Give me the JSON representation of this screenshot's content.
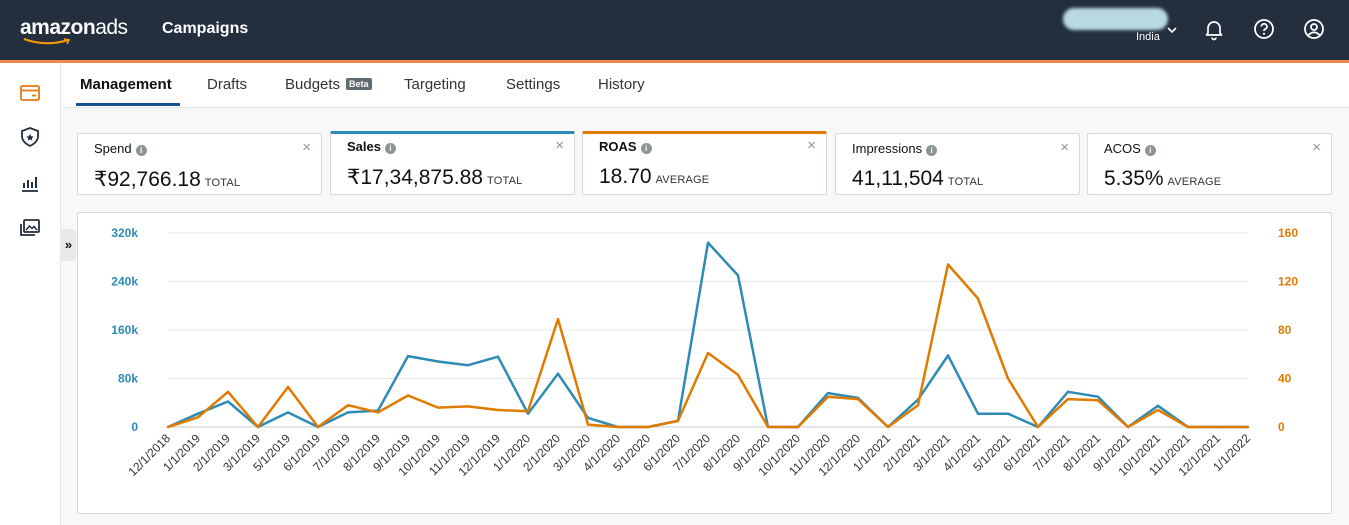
{
  "header": {
    "logo_main": "amazon",
    "logo_sub": "ads",
    "app_title": "Campaigns",
    "country": "India"
  },
  "tabs": [
    {
      "label": "Management",
      "active": true
    },
    {
      "label": "Drafts"
    },
    {
      "label": "Budgets",
      "badge": "Beta"
    },
    {
      "label": "Targeting"
    },
    {
      "label": "Settings"
    },
    {
      "label": "History"
    }
  ],
  "metrics": [
    {
      "label": "Spend",
      "value": "₹92,766.18",
      "unit": "TOTAL"
    },
    {
      "label": "Sales",
      "value": "₹17,34,875.88",
      "unit": "TOTAL",
      "selected_color": "#2e8bb5"
    },
    {
      "label": "ROAS",
      "value": "18.70",
      "unit": "AVERAGE",
      "selected_color": "#e07b00"
    },
    {
      "label": "Impressions",
      "value": "41,11,504",
      "unit": "TOTAL"
    },
    {
      "label": "ACOS",
      "value": "5.35%",
      "unit": "AVERAGE"
    }
  ],
  "icons": {
    "close": "×",
    "info": "i",
    "collapse": "»"
  },
  "chart_data": {
    "type": "line",
    "x": [
      "12/1/2018",
      "1/1/2019",
      "2/1/2019",
      "3/1/2019",
      "5/1/2019",
      "6/1/2019",
      "7/1/2019",
      "8/1/2019",
      "9/1/2019",
      "10/1/2019",
      "11/1/2019",
      "12/1/2019",
      "1/1/2020",
      "2/1/2020",
      "3/1/2020",
      "4/1/2020",
      "5/1/2020",
      "6/1/2020",
      "7/1/2020",
      "8/1/2020",
      "9/1/2020",
      "10/1/2020",
      "11/1/2020",
      "12/1/2020",
      "1/1/2021",
      "2/1/2021",
      "3/1/2021",
      "4/1/2021",
      "5/1/2021",
      "6/1/2021",
      "7/1/2021",
      "8/1/2021",
      "9/1/2021",
      "10/1/2021",
      "11/1/2021",
      "12/1/2021",
      "1/1/2022"
    ],
    "series": [
      {
        "name": "Sales",
        "axis": "left",
        "color": "#2e8bb5",
        "values": [
          0,
          22000,
          42000,
          0,
          24000,
          0,
          24000,
          27000,
          117000,
          108000,
          102000,
          116000,
          22000,
          88000,
          15000,
          0,
          0,
          10000,
          304000,
          250000,
          0,
          0,
          56000,
          48000,
          0,
          45000,
          118000,
          22000,
          22000,
          0,
          58000,
          50000,
          0,
          35000,
          0,
          0,
          0
        ]
      },
      {
        "name": "ROAS",
        "axis": "right",
        "color": "#e07b00",
        "values": [
          0,
          8,
          29,
          0,
          33,
          0,
          18,
          12,
          26,
          16,
          17,
          14,
          13,
          89,
          2,
          0,
          0,
          5,
          61,
          43,
          0,
          0,
          25,
          23,
          0,
          18,
          134,
          106,
          40,
          0,
          23,
          22,
          0,
          14,
          0,
          0,
          0
        ]
      }
    ],
    "left_axis": {
      "min": 0,
      "max": 320000,
      "ticks": [
        "0",
        "80k",
        "160k",
        "240k",
        "320k"
      ],
      "color": "#2e8bb5"
    },
    "right_axis": {
      "min": 0,
      "max": 160,
      "ticks": [
        "0",
        "40",
        "80",
        "120",
        "160"
      ],
      "color": "#e07b00"
    },
    "grid": true
  }
}
